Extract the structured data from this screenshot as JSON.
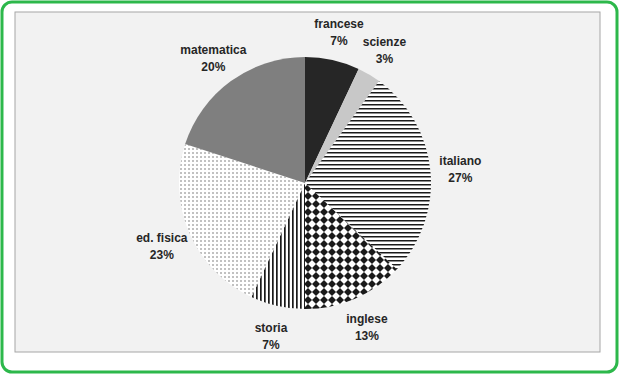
{
  "chart_data": {
    "type": "pie",
    "categories": [
      "francese",
      "scienze",
      "italiano",
      "inglese",
      "storia",
      "ed. fisica",
      "matematica"
    ],
    "values": [
      7,
      3,
      27,
      13,
      7,
      23,
      20
    ],
    "value_labels": [
      "7%",
      "3%",
      "27%",
      "13%",
      "7%",
      "23%",
      "20%"
    ],
    "colors": [
      "#262626",
      "#c8c8c8",
      "#ffffff",
      "#ffffff",
      "#ffffff",
      "#ffffff",
      "#7f7f7f"
    ],
    "data_labels": true
  }
}
